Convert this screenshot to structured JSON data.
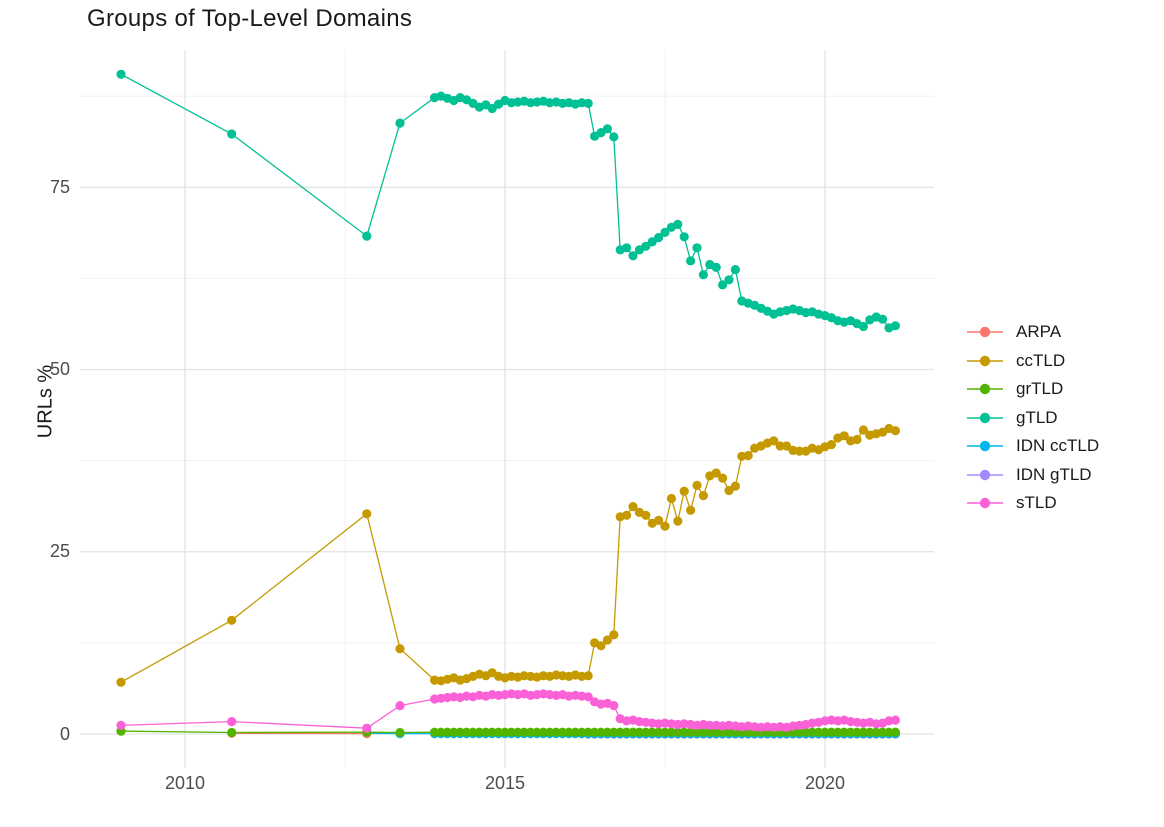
{
  "title": "Groups of Top-Level Domains",
  "axes": {
    "y_label": "URLs %",
    "y_ticks": [
      "0",
      "25",
      "50",
      "75"
    ],
    "x_ticks": [
      "2010",
      "2015",
      "2020"
    ]
  },
  "colors": {
    "background": "#ffffff",
    "grid_major": "#e3e3e3",
    "grid_minor": "#f0f0f0",
    "tick_text": "#4d4d4d",
    "title_text": "#1a1a1a"
  },
  "chart_data": {
    "type": "scatter",
    "title": "Groups of Top-Level Domains",
    "xlabel": "",
    "ylabel": "URLs %",
    "xlim": [
      2008.9,
      2021.7
    ],
    "ylim": [
      -5,
      93
    ],
    "x_axis_ticks": [
      2010,
      2015,
      2020
    ],
    "y_axis_ticks": [
      0,
      25,
      50,
      75
    ],
    "grid": "major+minor",
    "legend_position": "right",
    "draw_order": [
      "IDN gTLD",
      "IDN ccTLD",
      "ARPA",
      "grTLD",
      "ccTLD",
      "gTLD",
      "sTLD"
    ],
    "series": [
      {
        "name": "ARPA",
        "color": "#F8766D",
        "points": [
          [
            2010.73,
            0.1
          ],
          [
            2012.84,
            0.05
          ]
        ]
      },
      {
        "name": "ccTLD",
        "color": "#C49A00",
        "points": [
          [
            2009.0,
            7.1
          ],
          [
            2010.73,
            15.6
          ],
          [
            2012.84,
            30.2
          ],
          [
            2013.36,
            11.7
          ],
          [
            2013.9,
            7.4
          ],
          [
            2014.0,
            7.3
          ],
          [
            2014.1,
            7.5
          ],
          [
            2014.2,
            7.7
          ],
          [
            2014.3,
            7.4
          ],
          [
            2014.4,
            7.6
          ],
          [
            2014.5,
            7.9
          ],
          [
            2014.6,
            8.2
          ],
          [
            2014.7,
            8.0
          ],
          [
            2014.8,
            8.4
          ],
          [
            2014.9,
            7.9
          ],
          [
            2015.0,
            7.7
          ],
          [
            2015.1,
            7.9
          ],
          [
            2015.2,
            7.8
          ],
          [
            2015.3,
            8.0
          ],
          [
            2015.4,
            7.9
          ],
          [
            2015.5,
            7.8
          ],
          [
            2015.6,
            8.0
          ],
          [
            2015.7,
            7.9
          ],
          [
            2015.8,
            8.1
          ],
          [
            2015.9,
            8.0
          ],
          [
            2016.0,
            7.9
          ],
          [
            2016.1,
            8.1
          ],
          [
            2016.2,
            7.9
          ],
          [
            2016.3,
            8.0
          ],
          [
            2016.4,
            12.5
          ],
          [
            2016.5,
            12.1
          ],
          [
            2016.6,
            12.9
          ],
          [
            2016.7,
            13.6
          ],
          [
            2016.8,
            29.8
          ],
          [
            2016.9,
            30.0
          ],
          [
            2017.0,
            31.2
          ],
          [
            2017.1,
            30.4
          ],
          [
            2017.2,
            30.0
          ],
          [
            2017.3,
            28.9
          ],
          [
            2017.4,
            29.3
          ],
          [
            2017.5,
            28.5
          ],
          [
            2017.6,
            32.3
          ],
          [
            2017.7,
            29.2
          ],
          [
            2017.8,
            33.3
          ],
          [
            2017.9,
            30.7
          ],
          [
            2018.0,
            34.1
          ],
          [
            2018.1,
            32.7
          ],
          [
            2018.2,
            35.4
          ],
          [
            2018.3,
            35.8
          ],
          [
            2018.4,
            35.1
          ],
          [
            2018.5,
            33.4
          ],
          [
            2018.6,
            34.0
          ],
          [
            2018.7,
            38.1
          ],
          [
            2018.8,
            38.2
          ],
          [
            2018.9,
            39.2
          ],
          [
            2019.0,
            39.5
          ],
          [
            2019.1,
            39.9
          ],
          [
            2019.2,
            40.2
          ],
          [
            2019.3,
            39.5
          ],
          [
            2019.4,
            39.5
          ],
          [
            2019.5,
            38.9
          ],
          [
            2019.6,
            38.8
          ],
          [
            2019.7,
            38.8
          ],
          [
            2019.8,
            39.2
          ],
          [
            2019.9,
            39.0
          ],
          [
            2020.0,
            39.4
          ],
          [
            2020.1,
            39.7
          ],
          [
            2020.2,
            40.6
          ],
          [
            2020.3,
            40.9
          ],
          [
            2020.4,
            40.2
          ],
          [
            2020.5,
            40.4
          ],
          [
            2020.6,
            41.7
          ],
          [
            2020.7,
            41.0
          ],
          [
            2020.8,
            41.2
          ],
          [
            2020.9,
            41.4
          ],
          [
            2021.0,
            41.9
          ],
          [
            2021.1,
            41.6
          ]
        ]
      },
      {
        "name": "grTLD",
        "color": "#53B400",
        "points": [
          [
            2009.0,
            0.4
          ],
          [
            2010.73,
            0.2
          ],
          [
            2012.84,
            0.25
          ],
          [
            2013.36,
            0.2
          ]
        ],
        "flat": {
          "from": 2013.9,
          "to": 2021.1,
          "step": 0.1,
          "value": 0.25
        }
      },
      {
        "name": "gTLD",
        "color": "#00C094",
        "points": [
          [
            2009.0,
            90.5
          ],
          [
            2010.73,
            82.3
          ],
          [
            2012.84,
            68.3
          ],
          [
            2013.36,
            83.8
          ],
          [
            2013.9,
            87.3
          ],
          [
            2014.0,
            87.5
          ],
          [
            2014.1,
            87.2
          ],
          [
            2014.2,
            86.9
          ],
          [
            2014.3,
            87.3
          ],
          [
            2014.4,
            87.0
          ],
          [
            2014.5,
            86.5
          ],
          [
            2014.6,
            86.0
          ],
          [
            2014.7,
            86.3
          ],
          [
            2014.8,
            85.8
          ],
          [
            2014.9,
            86.4
          ],
          [
            2015.0,
            86.9
          ],
          [
            2015.1,
            86.6
          ],
          [
            2015.2,
            86.7
          ],
          [
            2015.3,
            86.8
          ],
          [
            2015.4,
            86.6
          ],
          [
            2015.5,
            86.7
          ],
          [
            2015.6,
            86.8
          ],
          [
            2015.7,
            86.6
          ],
          [
            2015.8,
            86.7
          ],
          [
            2015.9,
            86.5
          ],
          [
            2016.0,
            86.6
          ],
          [
            2016.1,
            86.4
          ],
          [
            2016.2,
            86.6
          ],
          [
            2016.3,
            86.5
          ],
          [
            2016.4,
            82.0
          ],
          [
            2016.5,
            82.5
          ],
          [
            2016.6,
            83.0
          ],
          [
            2016.7,
            81.9
          ],
          [
            2016.8,
            66.4
          ],
          [
            2016.9,
            66.7
          ],
          [
            2017.0,
            65.6
          ],
          [
            2017.1,
            66.4
          ],
          [
            2017.2,
            66.9
          ],
          [
            2017.3,
            67.5
          ],
          [
            2017.4,
            68.1
          ],
          [
            2017.5,
            68.8
          ],
          [
            2017.6,
            69.5
          ],
          [
            2017.7,
            69.9
          ],
          [
            2017.8,
            68.2
          ],
          [
            2017.9,
            64.9
          ],
          [
            2018.0,
            66.7
          ],
          [
            2018.1,
            63.0
          ],
          [
            2018.2,
            64.4
          ],
          [
            2018.3,
            64.0
          ],
          [
            2018.4,
            61.6
          ],
          [
            2018.5,
            62.3
          ],
          [
            2018.6,
            63.7
          ],
          [
            2018.7,
            59.4
          ],
          [
            2018.8,
            59.1
          ],
          [
            2018.9,
            58.8
          ],
          [
            2019.0,
            58.4
          ],
          [
            2019.1,
            58.0
          ],
          [
            2019.2,
            57.6
          ],
          [
            2019.3,
            57.9
          ],
          [
            2019.4,
            58.1
          ],
          [
            2019.5,
            58.3
          ],
          [
            2019.6,
            58.1
          ],
          [
            2019.7,
            57.8
          ],
          [
            2019.8,
            57.9
          ],
          [
            2019.9,
            57.6
          ],
          [
            2020.0,
            57.4
          ],
          [
            2020.1,
            57.1
          ],
          [
            2020.2,
            56.7
          ],
          [
            2020.3,
            56.5
          ],
          [
            2020.4,
            56.7
          ],
          [
            2020.5,
            56.3
          ],
          [
            2020.6,
            55.9
          ],
          [
            2020.7,
            56.8
          ],
          [
            2020.8,
            57.2
          ],
          [
            2020.9,
            56.9
          ],
          [
            2021.0,
            55.7
          ],
          [
            2021.1,
            56.0
          ]
        ]
      },
      {
        "name": "IDN ccTLD",
        "color": "#00B6EB",
        "points": [
          [
            2012.84,
            0.1
          ],
          [
            2013.36,
            0.06
          ]
        ],
        "flat": {
          "from": 2013.9,
          "to": 2021.1,
          "step": 0.1,
          "value": 0.05
        }
      },
      {
        "name": "IDN gTLD",
        "color": "#A58AFF",
        "points": [],
        "flat": {
          "from": 2016.3,
          "to": 2021.1,
          "step": 0.1,
          "value": 0.0
        }
      },
      {
        "name": "sTLD",
        "color": "#FB61D7",
        "points": [
          [
            2009.0,
            1.2
          ],
          [
            2010.73,
            1.7
          ],
          [
            2012.84,
            0.8
          ],
          [
            2013.36,
            3.9
          ],
          [
            2013.9,
            4.8
          ],
          [
            2014.0,
            4.9
          ],
          [
            2014.1,
            5.0
          ],
          [
            2014.2,
            5.1
          ],
          [
            2014.3,
            5.0
          ],
          [
            2014.4,
            5.2
          ],
          [
            2014.5,
            5.1
          ],
          [
            2014.6,
            5.3
          ],
          [
            2014.7,
            5.2
          ],
          [
            2014.8,
            5.4
          ],
          [
            2014.9,
            5.3
          ],
          [
            2015.0,
            5.4
          ],
          [
            2015.1,
            5.5
          ],
          [
            2015.2,
            5.4
          ],
          [
            2015.3,
            5.5
          ],
          [
            2015.4,
            5.3
          ],
          [
            2015.5,
            5.4
          ],
          [
            2015.6,
            5.5
          ],
          [
            2015.7,
            5.4
          ],
          [
            2015.8,
            5.3
          ],
          [
            2015.9,
            5.4
          ],
          [
            2016.0,
            5.2
          ],
          [
            2016.1,
            5.3
          ],
          [
            2016.2,
            5.2
          ],
          [
            2016.3,
            5.1
          ],
          [
            2016.4,
            4.4
          ],
          [
            2016.5,
            4.1
          ],
          [
            2016.6,
            4.2
          ],
          [
            2016.7,
            3.9
          ],
          [
            2016.8,
            2.1
          ],
          [
            2016.9,
            1.8
          ],
          [
            2017.0,
            1.9
          ],
          [
            2017.1,
            1.7
          ],
          [
            2017.2,
            1.6
          ],
          [
            2017.3,
            1.5
          ],
          [
            2017.4,
            1.4
          ],
          [
            2017.5,
            1.5
          ],
          [
            2017.6,
            1.4
          ],
          [
            2017.7,
            1.3
          ],
          [
            2017.8,
            1.4
          ],
          [
            2017.9,
            1.3
          ],
          [
            2018.0,
            1.2
          ],
          [
            2018.1,
            1.3
          ],
          [
            2018.2,
            1.2
          ],
          [
            2018.3,
            1.2
          ],
          [
            2018.4,
            1.1
          ],
          [
            2018.5,
            1.2
          ],
          [
            2018.6,
            1.1
          ],
          [
            2018.7,
            1.0
          ],
          [
            2018.8,
            1.1
          ],
          [
            2018.9,
            1.0
          ],
          [
            2019.0,
            0.9
          ],
          [
            2019.1,
            1.0
          ],
          [
            2019.2,
            0.9
          ],
          [
            2019.3,
            1.0
          ],
          [
            2019.4,
            0.9
          ],
          [
            2019.5,
            1.1
          ],
          [
            2019.6,
            1.2
          ],
          [
            2019.7,
            1.3
          ],
          [
            2019.8,
            1.5
          ],
          [
            2019.9,
            1.6
          ],
          [
            2020.0,
            1.8
          ],
          [
            2020.1,
            1.9
          ],
          [
            2020.2,
            1.8
          ],
          [
            2020.3,
            1.9
          ],
          [
            2020.4,
            1.7
          ],
          [
            2020.5,
            1.6
          ],
          [
            2020.6,
            1.5
          ],
          [
            2020.7,
            1.6
          ],
          [
            2020.8,
            1.4
          ],
          [
            2020.9,
            1.5
          ],
          [
            2021.0,
            1.8
          ],
          [
            2021.1,
            1.9
          ]
        ]
      }
    ]
  }
}
